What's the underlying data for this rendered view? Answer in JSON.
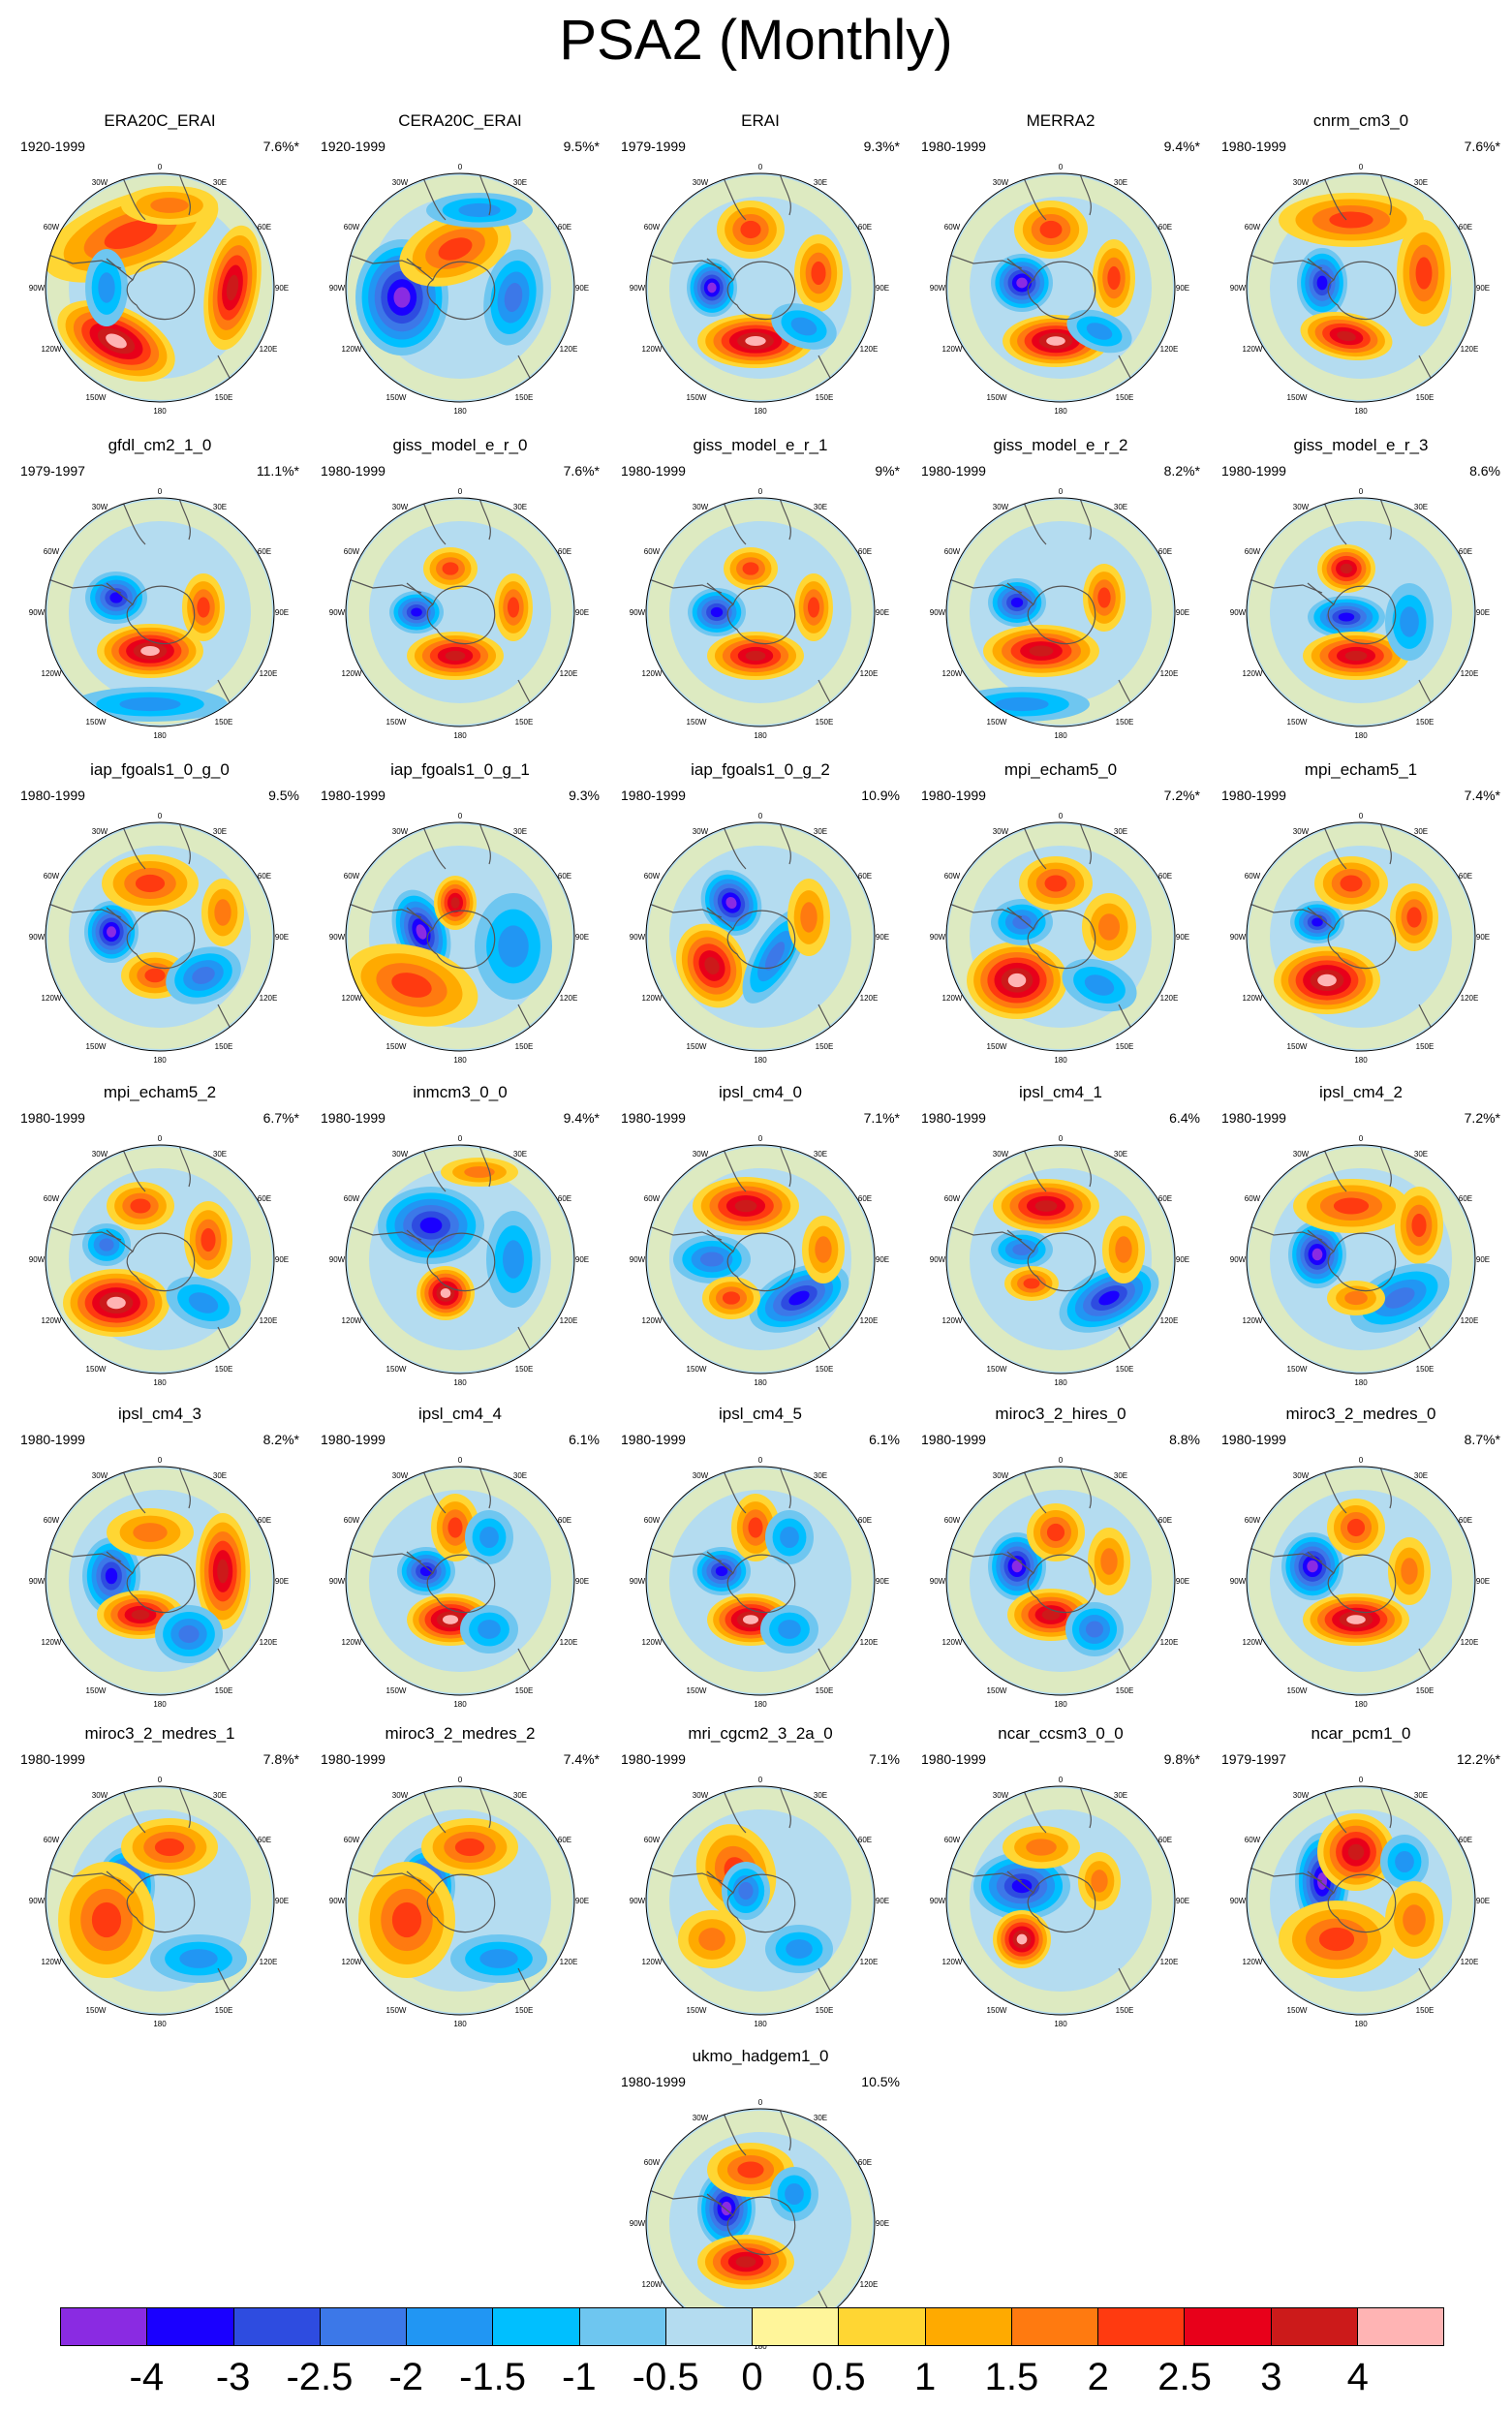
{
  "title": "PSA2 (Monthly)",
  "lon_labels": {
    "l0": "0",
    "l30e": "30E",
    "l60e": "60E",
    "l90e": "90E",
    "l120e": "120E",
    "l150e": "150E",
    "l180": "180",
    "l150w": "150W",
    "l120w": "120W",
    "l90w": "90W",
    "l60w": "60W",
    "l30w": "30W"
  },
  "panels": [
    {
      "name": "ERA20C_ERAI",
      "period": "1920-1999",
      "pct": "7.6%*"
    },
    {
      "name": "CERA20C_ERAI",
      "period": "1920-1999",
      "pct": "9.5%*"
    },
    {
      "name": "ERAI",
      "period": "1979-1999",
      "pct": "9.3%*"
    },
    {
      "name": "MERRA2",
      "period": "1980-1999",
      "pct": "9.4%*"
    },
    {
      "name": "cnrm_cm3_0",
      "period": "1980-1999",
      "pct": "7.6%*"
    },
    {
      "name": "gfdl_cm2_1_0",
      "period": "1979-1997",
      "pct": "11.1%*"
    },
    {
      "name": "giss_model_e_r_0",
      "period": "1980-1999",
      "pct": "7.6%*"
    },
    {
      "name": "giss_model_e_r_1",
      "period": "1980-1999",
      "pct": "9%*"
    },
    {
      "name": "giss_model_e_r_2",
      "period": "1980-1999",
      "pct": "8.2%*"
    },
    {
      "name": "giss_model_e_r_3",
      "period": "1980-1999",
      "pct": "8.6%"
    },
    {
      "name": "iap_fgoals1_0_g_0",
      "period": "1980-1999",
      "pct": "9.5%"
    },
    {
      "name": "iap_fgoals1_0_g_1",
      "period": "1980-1999",
      "pct": "9.3%"
    },
    {
      "name": "iap_fgoals1_0_g_2",
      "period": "1980-1999",
      "pct": "10.9%"
    },
    {
      "name": "mpi_echam5_0",
      "period": "1980-1999",
      "pct": "7.2%*"
    },
    {
      "name": "mpi_echam5_1",
      "period": "1980-1999",
      "pct": "7.4%*"
    },
    {
      "name": "mpi_echam5_2",
      "period": "1980-1999",
      "pct": "6.7%*"
    },
    {
      "name": "inmcm3_0_0",
      "period": "1980-1999",
      "pct": "9.4%*"
    },
    {
      "name": "ipsl_cm4_0",
      "period": "1980-1999",
      "pct": "7.1%*"
    },
    {
      "name": "ipsl_cm4_1",
      "period": "1980-1999",
      "pct": "6.4%"
    },
    {
      "name": "ipsl_cm4_2",
      "period": "1980-1999",
      "pct": "7.2%*"
    },
    {
      "name": "ipsl_cm4_3",
      "period": "1980-1999",
      "pct": "8.2%*"
    },
    {
      "name": "ipsl_cm4_4",
      "period": "1980-1999",
      "pct": "6.1%"
    },
    {
      "name": "ipsl_cm4_5",
      "period": "1980-1999",
      "pct": "6.1%"
    },
    {
      "name": "miroc3_2_hires_0",
      "period": "1980-1999",
      "pct": "8.8%"
    },
    {
      "name": "miroc3_2_medres_0",
      "period": "1980-1999",
      "pct": "8.7%*"
    },
    {
      "name": "miroc3_2_medres_1",
      "period": "1980-1999",
      "pct": "7.8%*"
    },
    {
      "name": "miroc3_2_medres_2",
      "period": "1980-1999",
      "pct": "7.4%*"
    },
    {
      "name": "mri_cgcm2_3_2a_0",
      "period": "1980-1999",
      "pct": "7.1%"
    },
    {
      "name": "ncar_ccsm3_0_0",
      "period": "1980-1999",
      "pct": "9.8%*"
    },
    {
      "name": "ncar_pcm1_0",
      "period": "1979-1997",
      "pct": "12.2%*"
    },
    {
      "name": "ukmo_hadgem1_0",
      "period": "1980-1999",
      "pct": "10.5%"
    }
  ],
  "colorbar": {
    "colors": [
      "#8a2be2",
      "#1a00ff",
      "#2e4ce0",
      "#3c78e8",
      "#2196f3",
      "#00bfff",
      "#6ec6f0",
      "#b4dcf0",
      "#fff59a",
      "#ffd633",
      "#ffaa00",
      "#ff7a10",
      "#ff3a10",
      "#e8001a",
      "#cc1a1a",
      "#ffb4b4"
    ],
    "labels": [
      "-4",
      "-3",
      "-2.5",
      "-2",
      "-1.5",
      "-1",
      "-0.5",
      "0",
      "0.5",
      "1",
      "1.5",
      "2",
      "2.5",
      "3",
      "4"
    ]
  }
}
